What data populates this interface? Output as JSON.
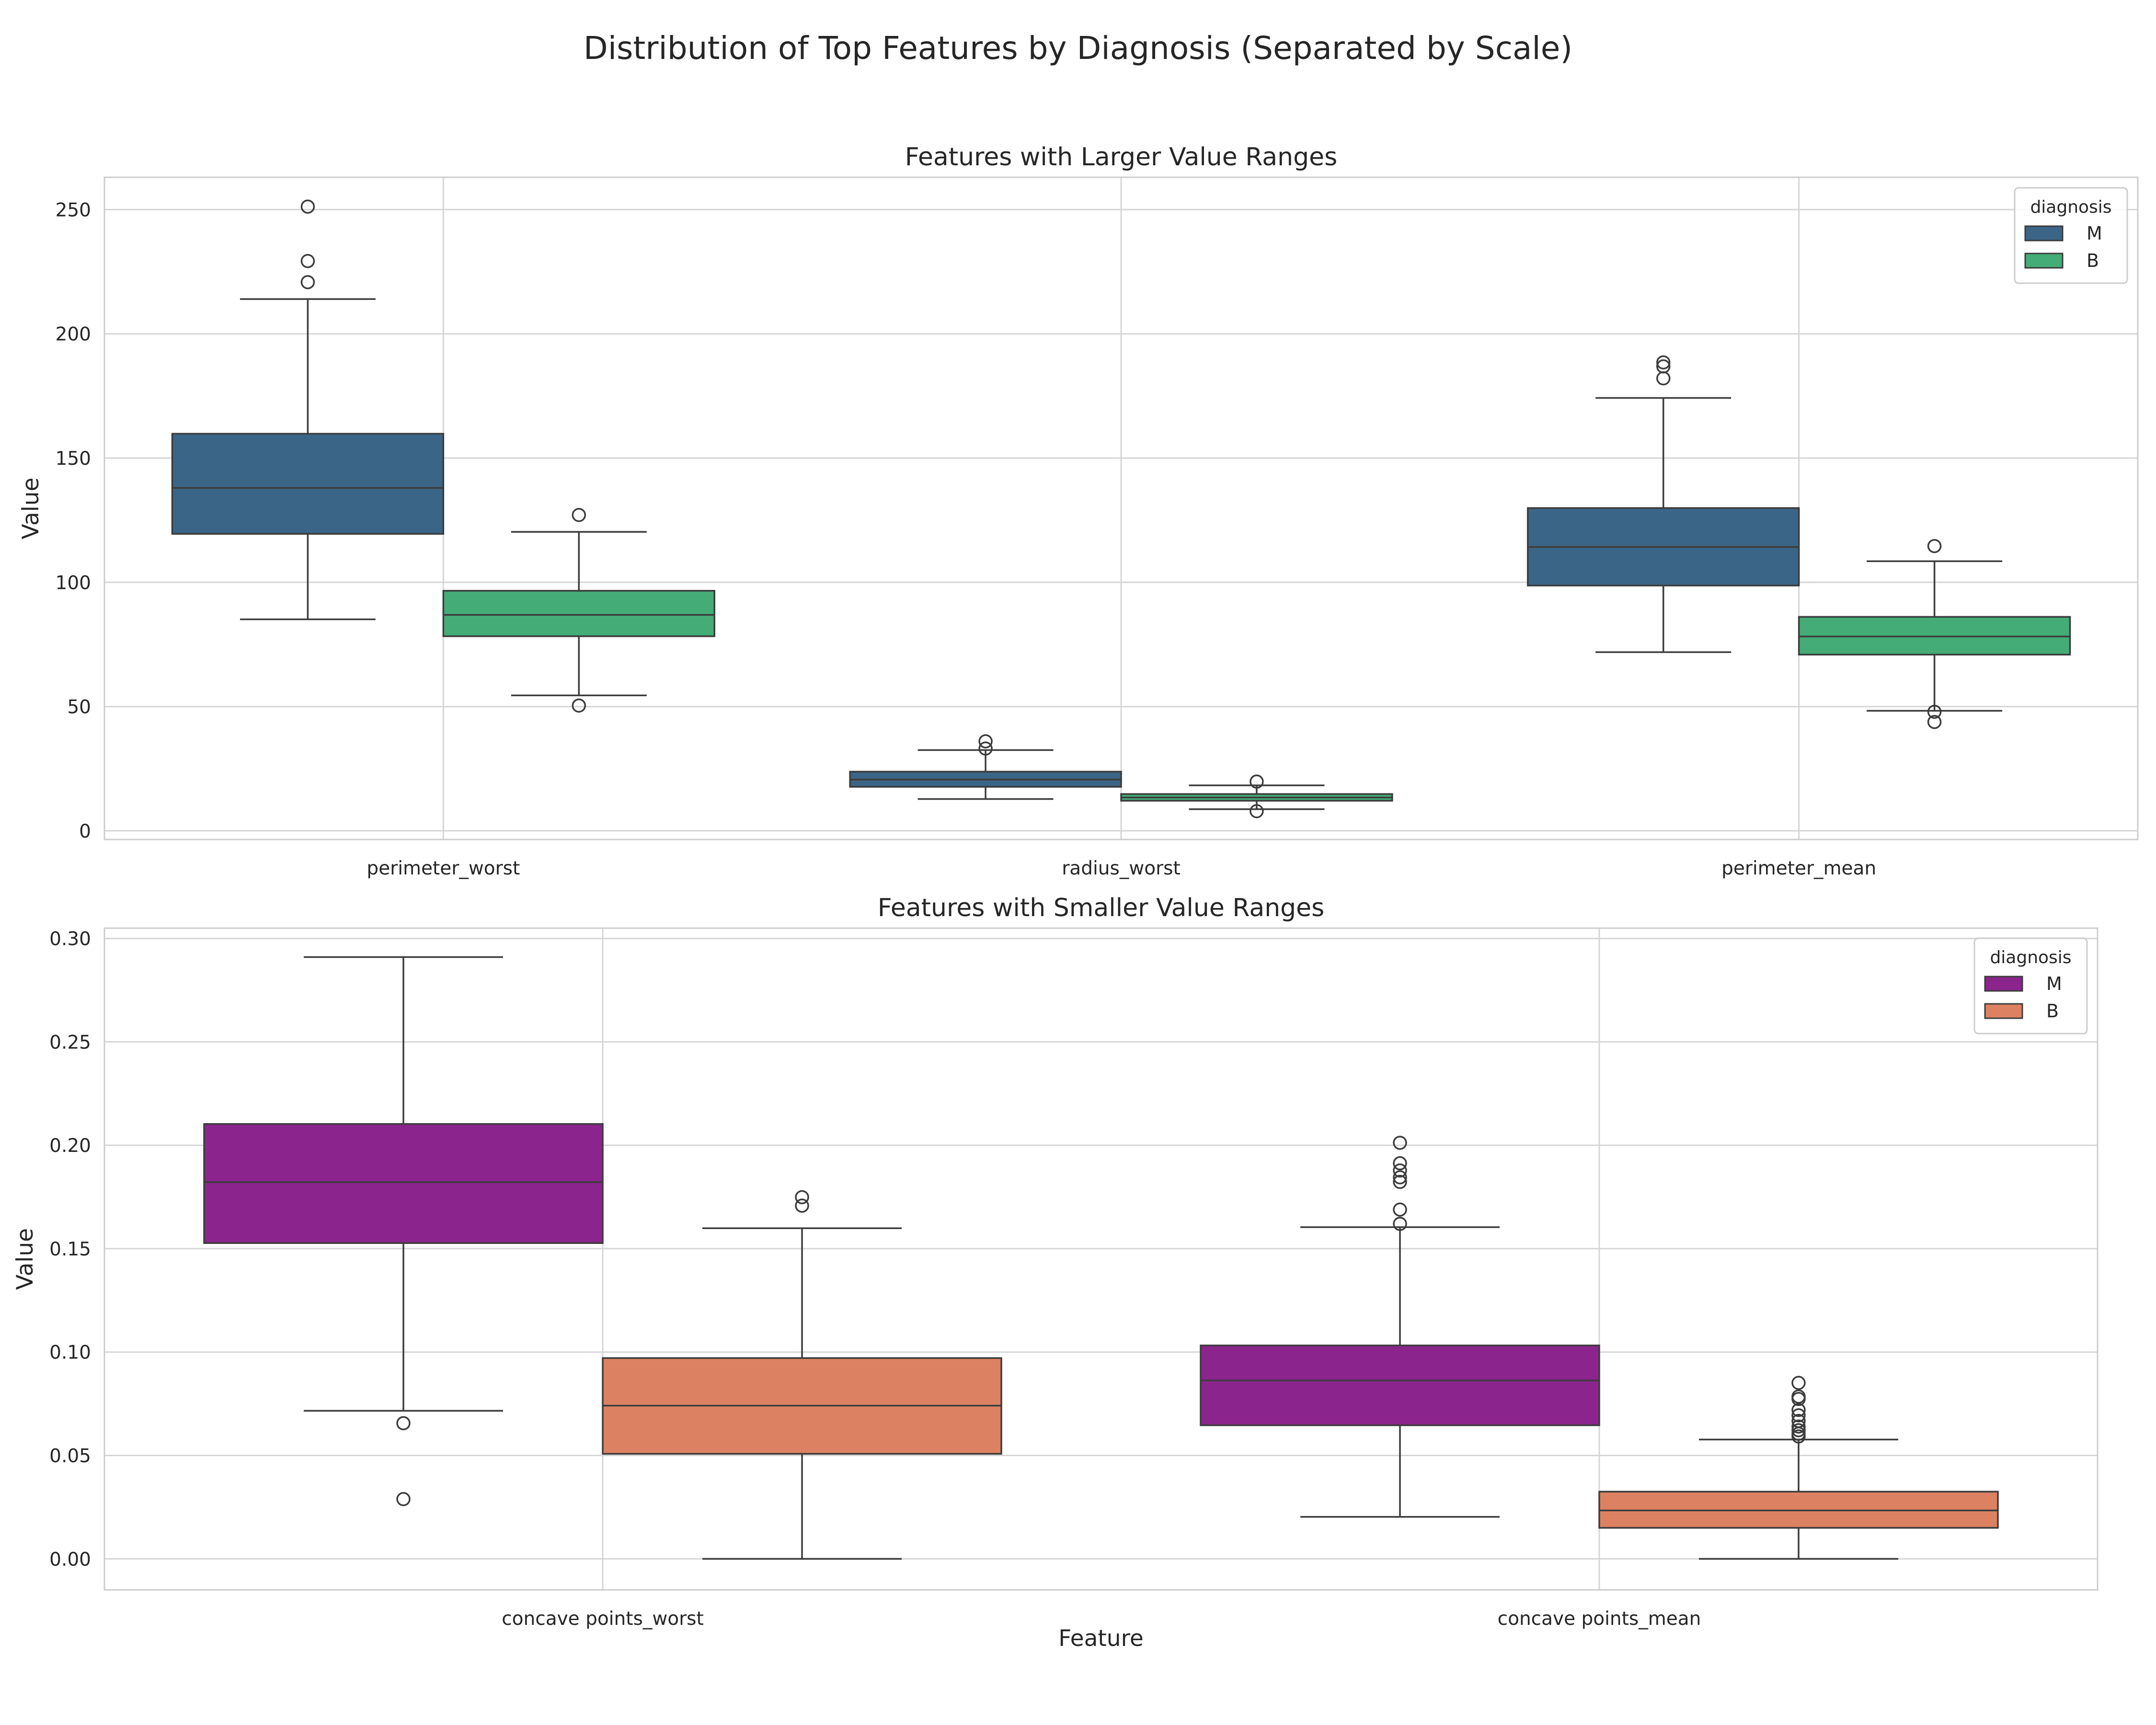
{
  "figure": {
    "title": "Distribution of Top Features by Diagnosis (Separated by Scale)"
  },
  "chart_data": [
    {
      "type": "box",
      "title": "Features with Larger Value Ranges",
      "xlabel": "",
      "ylabel": "Value",
      "ylim": [
        -3.5,
        263
      ],
      "yticks": [
        0,
        50,
        100,
        150,
        200,
        250
      ],
      "grid": true,
      "categories": [
        "perimeter_worst",
        "radius_worst",
        "perimeter_mean"
      ],
      "legend": {
        "title": "diagnosis",
        "placement": "top-right"
      },
      "series": [
        {
          "name": "M",
          "color": "#3b6586",
          "boxes": [
            {
              "whisker_low": 85.1,
              "q1": 119.5,
              "median": 138.0,
              "q3": 159.8,
              "whisker_high": 214.0,
              "outliers": [
                251.2,
                229.3,
                220.8
              ]
            },
            {
              "whisker_low": 12.8,
              "q1": 17.7,
              "median": 20.6,
              "q3": 23.8,
              "whisker_high": 32.5,
              "outliers": [
                36.0,
                33.1
              ]
            },
            {
              "whisker_low": 71.9,
              "q1": 98.7,
              "median": 114.2,
              "q3": 129.9,
              "whisker_high": 174.2,
              "outliers": [
                188.5,
                186.9,
                182.1
              ]
            }
          ]
        },
        {
          "name": "B",
          "color": "#44ac77",
          "boxes": [
            {
              "whisker_low": 54.5,
              "q1": 78.3,
              "median": 86.9,
              "q3": 96.6,
              "whisker_high": 120.3,
              "outliers": [
                127.1,
                50.4
              ]
            },
            {
              "whisker_low": 8.7,
              "q1": 12.1,
              "median": 13.4,
              "q3": 14.8,
              "whisker_high": 18.3,
              "outliers": [
                19.8,
                7.9
              ]
            },
            {
              "whisker_low": 48.3,
              "q1": 70.9,
              "median": 78.2,
              "q3": 86.1,
              "whisker_high": 108.5,
              "outliers": [
                114.6,
                47.9,
                43.8
              ]
            }
          ]
        }
      ]
    },
    {
      "type": "box",
      "title": "Features with Smaller Value Ranges",
      "xlabel": "Feature",
      "ylabel": "Value",
      "ylim": [
        -0.015,
        0.305
      ],
      "yticks": [
        0.0,
        0.05,
        0.1,
        0.15,
        0.2,
        0.25,
        0.3
      ],
      "ytick_labels": [
        "0.00",
        "0.05",
        "0.10",
        "0.15",
        "0.20",
        "0.25",
        "0.30"
      ],
      "grid": true,
      "categories": [
        "concave points_worst",
        "concave points_mean"
      ],
      "legend": {
        "title": "diagnosis",
        "placement": "top-right"
      },
      "series": [
        {
          "name": "M",
          "color": "#8b258d",
          "boxes": [
            {
              "whisker_low": 0.0716,
              "q1": 0.1527,
              "median": 0.1822,
              "q3": 0.2103,
              "whisker_high": 0.291,
              "outliers": [
                0.0656,
                0.0289
              ]
            },
            {
              "whisker_low": 0.0203,
              "q1": 0.0646,
              "median": 0.0863,
              "q3": 0.1032,
              "whisker_high": 0.1604,
              "outliers": [
                0.2012,
                0.1913,
                0.1878,
                0.1845,
                0.1823,
                0.1689,
                0.162
              ]
            }
          ]
        },
        {
          "name": "B",
          "color": "#dc8262",
          "boxes": [
            {
              "whisker_low": 0.0,
              "q1": 0.0508,
              "median": 0.0741,
              "q3": 0.0971,
              "whisker_high": 0.1599,
              "outliers": [
                0.1749,
                0.1708
              ]
            },
            {
              "whisker_low": 0.0,
              "q1": 0.015,
              "median": 0.0234,
              "q3": 0.0325,
              "whisker_high": 0.0577,
              "outliers": [
                0.0851,
                0.0785,
                0.0773,
                0.072,
                0.0694,
                0.0667,
                0.064,
                0.0622,
                0.0605,
                0.0592
              ]
            }
          ]
        }
      ]
    }
  ]
}
